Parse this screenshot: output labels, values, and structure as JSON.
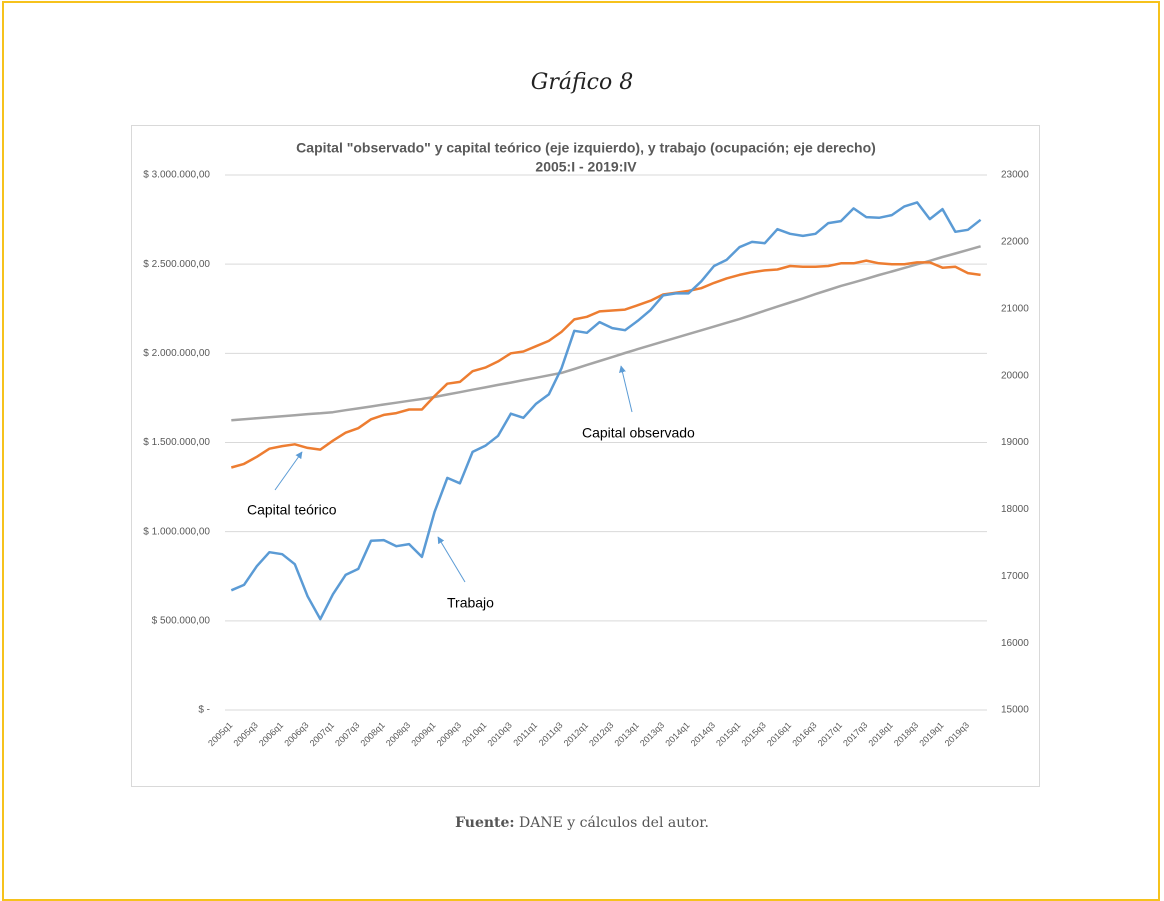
{
  "header": {
    "title": "Gráfico 8"
  },
  "chart_data": {
    "type": "line",
    "title": "Capital \"observado\" y capital teórico (eje izquierdo), y trabajo (ocupación; eje derecho)",
    "subtitle": "2005:I - 2019:IV",
    "categories": [
      "2005q1",
      null,
      "2005q3",
      null,
      "2006q1",
      null,
      "2006q3",
      null,
      "2007q1",
      null,
      "2007q3",
      null,
      "2008q1",
      null,
      "2008q3",
      null,
      "2009q1",
      null,
      "2009q3",
      null,
      "2010q1",
      null,
      "2010q3",
      null,
      "2011q1",
      null,
      "2011q3",
      null,
      "2012q1",
      null,
      "2012q3",
      null,
      "2013q1",
      null,
      "2013q3",
      null,
      "2014q1",
      null,
      "2014q3",
      null,
      "2015q1",
      null,
      "2015q3",
      null,
      "2016q1",
      null,
      "2016q3",
      null,
      "2017q1",
      null,
      "2017q3",
      null,
      "2018q1",
      null,
      "2018q3",
      null,
      "2019q1",
      null,
      "2019q3",
      null
    ],
    "ylim": [
      0,
      3000000
    ],
    "yticks": [
      {
        "value": 0,
        "label": "$ -"
      },
      {
        "value": 500000,
        "label": "$ 500.000,00"
      },
      {
        "value": 1000000,
        "label": "$ 1.000.000,00"
      },
      {
        "value": 1500000,
        "label": "$ 1.500.000,00"
      },
      {
        "value": 2000000,
        "label": "$ 2.000.000,00"
      },
      {
        "value": 2500000,
        "label": "$ 2.500.000,00"
      },
      {
        "value": 3000000,
        "label": "$ 3.000.000,00"
      }
    ],
    "y2lim": [
      15000,
      23000
    ],
    "y2ticks": [
      15000,
      16000,
      17000,
      18000,
      19000,
      20000,
      21000,
      22000,
      23000
    ],
    "grid": true,
    "series": [
      {
        "name": "Capital observado",
        "color": "#a5a5a5",
        "axis": "y",
        "values": [
          1625000,
          1630000,
          1636000,
          1642000,
          1647000,
          1653000,
          1659000,
          1664000,
          1670000,
          1681000,
          1691000,
          1702000,
          1713000,
          1723000,
          1734000,
          1744000,
          1755000,
          1769000,
          1782000,
          1796000,
          1809000,
          1823000,
          1836000,
          1850000,
          1863000,
          1877000,
          1890000,
          1912000,
          1935000,
          1957000,
          1979000,
          2002000,
          2024000,
          2045000,
          2066000,
          2087000,
          2108000,
          2129000,
          2150000,
          2171000,
          2192000,
          2215000,
          2239000,
          2262000,
          2285000,
          2308000,
          2332000,
          2355000,
          2378000,
          2398000,
          2418000,
          2439000,
          2459000,
          2479000,
          2499000,
          2519000,
          2540000,
          2560000,
          2580000,
          2600000
        ]
      },
      {
        "name": "Capital teórico",
        "color": "#ed7d31",
        "axis": "y",
        "values": [
          1360000,
          1380000,
          1420000,
          1465000,
          1480000,
          1490000,
          1470000,
          1460000,
          1510000,
          1555000,
          1580000,
          1630000,
          1655000,
          1665000,
          1685000,
          1685000,
          1760000,
          1830000,
          1840000,
          1900000,
          1920000,
          1955000,
          2000000,
          2010000,
          2040000,
          2070000,
          2120000,
          2190000,
          2205000,
          2235000,
          2240000,
          2245000,
          2270000,
          2295000,
          2330000,
          2340000,
          2350000,
          2365000,
          2395000,
          2420000,
          2440000,
          2455000,
          2465000,
          2470000,
          2490000,
          2485000,
          2485000,
          2490000,
          2505000,
          2505000,
          2520000,
          2505000,
          2500000,
          2500000,
          2510000,
          2510000,
          2480000,
          2485000,
          2450000,
          2440000
        ]
      },
      {
        "name": "Trabajo",
        "color": "#5b9bd5",
        "axis": "y2",
        "values": [
          16790,
          16870,
          17150,
          17360,
          17330,
          17180,
          16700,
          16360,
          16730,
          17020,
          17110,
          17530,
          17540,
          17450,
          17480,
          17290,
          17960,
          18470,
          18390,
          18860,
          18950,
          19100,
          19430,
          19370,
          19580,
          19720,
          20110,
          20670,
          20640,
          20800,
          20710,
          20680,
          20820,
          20980,
          21200,
          21230,
          21230,
          21410,
          21640,
          21730,
          21920,
          22000,
          21980,
          22190,
          22120,
          22090,
          22120,
          22280,
          22310,
          22500,
          22370,
          22360,
          22400,
          22530,
          22590,
          22340,
          22490,
          22150,
          22180,
          22330
        ]
      }
    ],
    "annotations": [
      "Capital observado",
      "Capital teórico",
      "Trabajo"
    ]
  },
  "footer": {
    "label": "Fuente:",
    "text": "DANE y cálculos del autor."
  }
}
